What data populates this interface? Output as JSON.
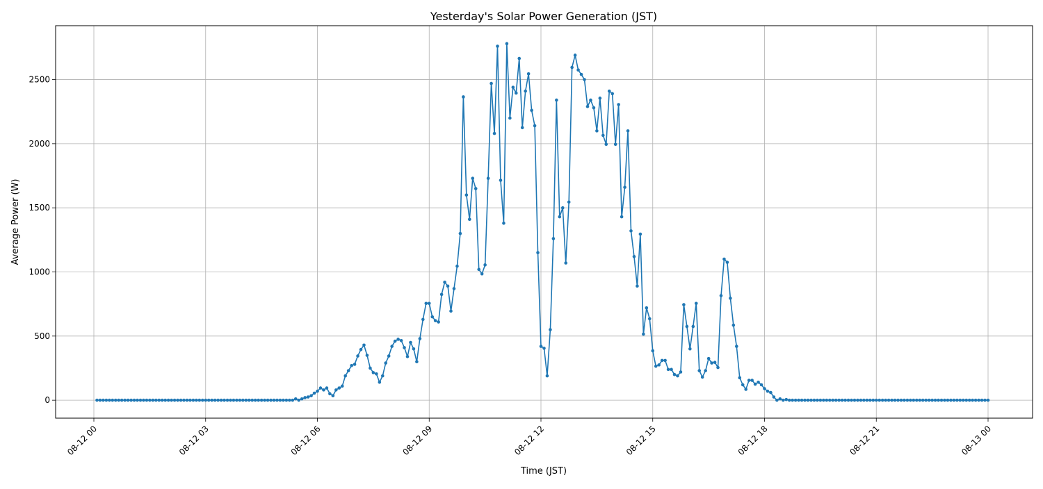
{
  "chart_data": {
    "type": "line",
    "title": "Yesterday's Solar Power Generation (JST)",
    "xlabel": "Time (JST)",
    "ylabel": "Average Power (W)",
    "x_tick_labels": [
      "08-12 00",
      "08-12 03",
      "08-12 06",
      "08-12 09",
      "08-12 12",
      "08-12 15",
      "08-12 18",
      "08-12 21",
      "08-13 00"
    ],
    "y_ticks": [
      0,
      500,
      1000,
      1500,
      2000,
      2500
    ],
    "xlim": [
      "08-11 23:20",
      "08-13 00:10"
    ],
    "ylim": [
      -140,
      2920
    ],
    "grid": true,
    "line_color": "#1f77b4",
    "sample_interval_minutes": 5,
    "x_start": "08-12 00:05",
    "series": [
      {
        "marker": "dot",
        "points": [
          [
            "05:20",
            0
          ],
          [
            "05:25",
            10
          ],
          [
            "05:30",
            0
          ],
          [
            "05:35",
            10
          ],
          [
            "05:40",
            20
          ],
          [
            "05:45",
            25
          ],
          [
            "05:50",
            35
          ],
          [
            "05:55",
            55
          ],
          [
            "06:00",
            70
          ],
          [
            "06:05",
            95
          ],
          [
            "06:10",
            80
          ],
          [
            "06:15",
            95
          ],
          [
            "06:20",
            50
          ],
          [
            "06:25",
            35
          ],
          [
            "06:30",
            80
          ],
          [
            "06:35",
            95
          ],
          [
            "06:40",
            110
          ],
          [
            "06:45",
            190
          ],
          [
            "06:50",
            230
          ],
          [
            "06:55",
            270
          ],
          [
            "07:00",
            280
          ],
          [
            "07:05",
            345
          ],
          [
            "07:10",
            395
          ],
          [
            "07:15",
            430
          ],
          [
            "07:20",
            350
          ],
          [
            "07:25",
            250
          ],
          [
            "07:30",
            215
          ],
          [
            "07:35",
            205
          ],
          [
            "07:40",
            140
          ],
          [
            "07:45",
            190
          ],
          [
            "07:50",
            290
          ],
          [
            "07:55",
            345
          ],
          [
            "08:00",
            420
          ],
          [
            "08:05",
            460
          ],
          [
            "08:10",
            475
          ],
          [
            "08:15",
            465
          ],
          [
            "08:20",
            410
          ],
          [
            "08:25",
            340
          ],
          [
            "08:30",
            450
          ],
          [
            "08:35",
            400
          ],
          [
            "08:40",
            300
          ],
          [
            "08:45",
            480
          ],
          [
            "08:50",
            630
          ],
          [
            "08:55",
            755
          ],
          [
            "09:00",
            755
          ],
          [
            "09:05",
            650
          ],
          [
            "09:10",
            620
          ],
          [
            "09:15",
            610
          ],
          [
            "09:20",
            825
          ],
          [
            "09:25",
            920
          ],
          [
            "09:30",
            890
          ],
          [
            "09:35",
            695
          ],
          [
            "09:40",
            870
          ],
          [
            "09:45",
            1045
          ],
          [
            "09:50",
            1300
          ],
          [
            "09:55",
            2365
          ],
          [
            "10:00",
            1600
          ],
          [
            "10:05",
            1410
          ],
          [
            "10:10",
            1730
          ],
          [
            "10:15",
            1650
          ],
          [
            "10:20",
            1020
          ],
          [
            "10:25",
            985
          ],
          [
            "10:30",
            1055
          ],
          [
            "10:35",
            1730
          ],
          [
            "10:40",
            2470
          ],
          [
            "10:45",
            2080
          ],
          [
            "10:50",
            2760
          ],
          [
            "10:55",
            1715
          ],
          [
            "11:00",
            1380
          ],
          [
            "11:05",
            2780
          ],
          [
            "11:10",
            2200
          ],
          [
            "11:15",
            2440
          ],
          [
            "11:20",
            2395
          ],
          [
            "11:25",
            2665
          ],
          [
            "11:30",
            2125
          ],
          [
            "11:35",
            2410
          ],
          [
            "11:40",
            2545
          ],
          [
            "11:45",
            2260
          ],
          [
            "11:50",
            2140
          ],
          [
            "11:55",
            1150
          ],
          [
            "12:00",
            420
          ],
          [
            "12:05",
            405
          ],
          [
            "12:10",
            190
          ],
          [
            "12:15",
            550
          ],
          [
            "12:20",
            1260
          ],
          [
            "12:25",
            2340
          ],
          [
            "12:30",
            1430
          ],
          [
            "12:35",
            1500
          ],
          [
            "12:40",
            1070
          ],
          [
            "12:45",
            1545
          ],
          [
            "12:50",
            2595
          ],
          [
            "12:55",
            2690
          ],
          [
            "13:00",
            2575
          ],
          [
            "13:05",
            2540
          ],
          [
            "13:10",
            2500
          ],
          [
            "13:15",
            2290
          ],
          [
            "13:20",
            2340
          ],
          [
            "13:25",
            2280
          ],
          [
            "13:30",
            2100
          ],
          [
            "13:35",
            2355
          ],
          [
            "13:40",
            2065
          ],
          [
            "13:45",
            1995
          ],
          [
            "13:50",
            2410
          ],
          [
            "13:55",
            2390
          ],
          [
            "14:00",
            1995
          ],
          [
            "14:05",
            2305
          ],
          [
            "14:10",
            1430
          ],
          [
            "14:15",
            1660
          ],
          [
            "14:20",
            2100
          ],
          [
            "14:25",
            1320
          ],
          [
            "14:30",
            1120
          ],
          [
            "14:35",
            890
          ],
          [
            "14:40",
            1295
          ],
          [
            "14:45",
            515
          ],
          [
            "14:50",
            720
          ],
          [
            "14:55",
            635
          ],
          [
            "15:00",
            385
          ],
          [
            "15:05",
            265
          ],
          [
            "15:10",
            275
          ],
          [
            "15:15",
            310
          ],
          [
            "15:20",
            310
          ],
          [
            "15:25",
            240
          ],
          [
            "15:30",
            240
          ],
          [
            "15:35",
            200
          ],
          [
            "15:40",
            190
          ],
          [
            "15:45",
            220
          ],
          [
            "15:50",
            745
          ],
          [
            "15:55",
            575
          ],
          [
            "16:00",
            400
          ],
          [
            "16:05",
            575
          ],
          [
            "16:10",
            755
          ],
          [
            "16:15",
            230
          ],
          [
            "16:20",
            180
          ],
          [
            "16:25",
            230
          ],
          [
            "16:30",
            325
          ],
          [
            "16:35",
            290
          ],
          [
            "16:40",
            295
          ],
          [
            "16:45",
            255
          ],
          [
            "16:50",
            815
          ],
          [
            "16:55",
            1100
          ],
          [
            "17:00",
            1075
          ],
          [
            "17:05",
            795
          ],
          [
            "17:10",
            585
          ],
          [
            "17:15",
            420
          ],
          [
            "17:20",
            175
          ],
          [
            "17:25",
            120
          ],
          [
            "17:30",
            85
          ],
          [
            "17:35",
            155
          ],
          [
            "17:40",
            155
          ],
          [
            "17:45",
            125
          ],
          [
            "17:50",
            140
          ],
          [
            "17:55",
            120
          ],
          [
            "18:00",
            90
          ],
          [
            "18:05",
            70
          ],
          [
            "18:10",
            60
          ],
          [
            "18:15",
            25
          ],
          [
            "18:20",
            0
          ],
          [
            "18:25",
            10
          ],
          [
            "18:30",
            0
          ],
          [
            "18:35",
            5
          ],
          [
            "18:40",
            0
          ]
        ]
      }
    ]
  }
}
